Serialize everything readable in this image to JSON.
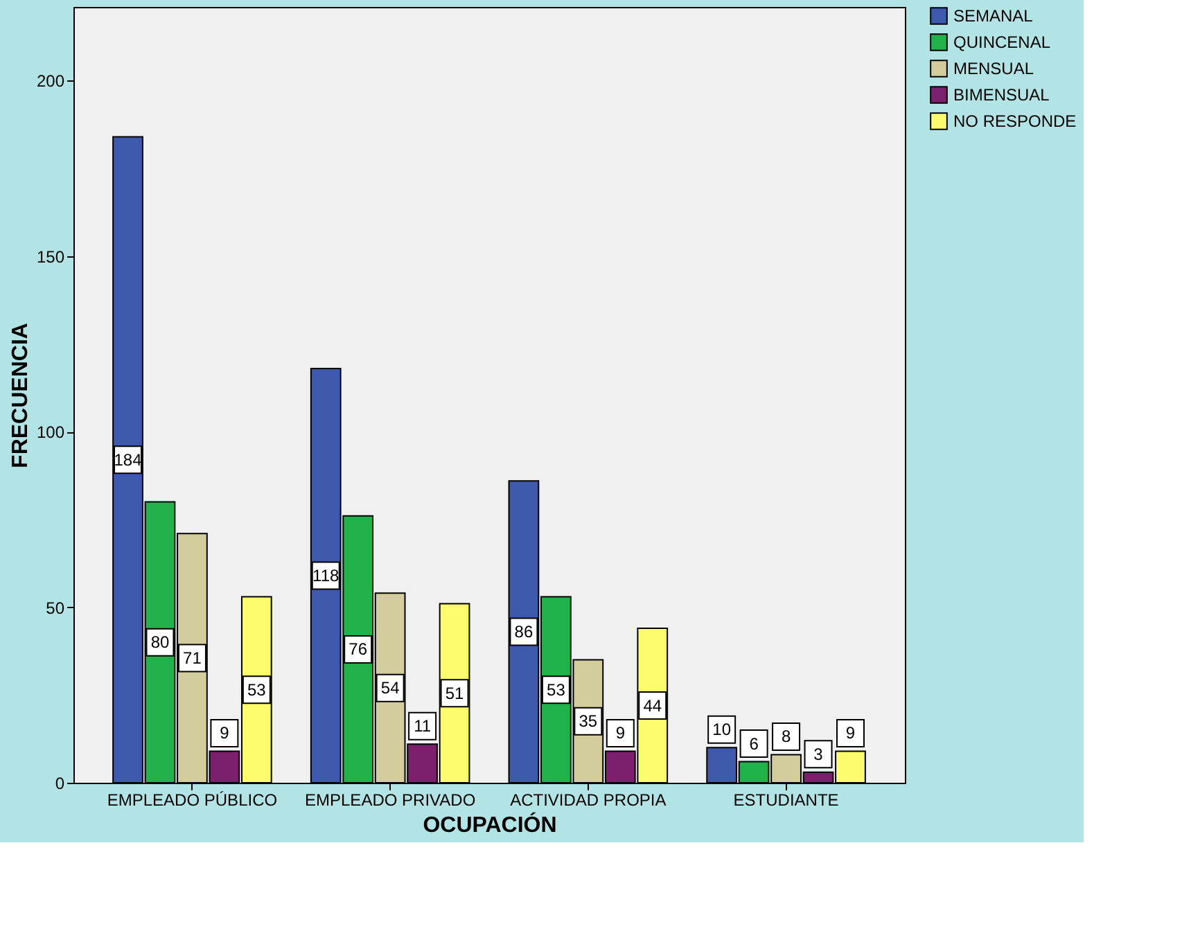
{
  "chart_data": {
    "type": "bar",
    "xlabel": "OCUPACIÓN",
    "ylabel": "FRECUENCIA",
    "categories": [
      "EMPLEADO PÚBLICO",
      "EMPLEADO PRIVADO",
      "ACTIVIDAD PROPIA",
      "ESTUDIANTE"
    ],
    "series": [
      {
        "name": "SEMANAL",
        "color": "#3e58ac",
        "values": [
          184,
          118,
          86,
          10
        ]
      },
      {
        "name": "QUINCENAL",
        "color": "#21b24b",
        "values": [
          80,
          76,
          53,
          6
        ]
      },
      {
        "name": "MENSUAL",
        "color": "#d3cc9c",
        "values": [
          71,
          54,
          35,
          8
        ]
      },
      {
        "name": "BIMENSUAL",
        "color": "#7c1f6c",
        "values": [
          9,
          11,
          9,
          3
        ]
      },
      {
        "name": "NO RESPONDE",
        "color": "#fbfb6c",
        "values": [
          53,
          51,
          44,
          9
        ]
      }
    ],
    "ylim": [
      0,
      221
    ],
    "yticks": [
      0,
      50,
      100,
      150,
      200
    ],
    "grid": false,
    "legend": "top right",
    "data_labels": true
  }
}
